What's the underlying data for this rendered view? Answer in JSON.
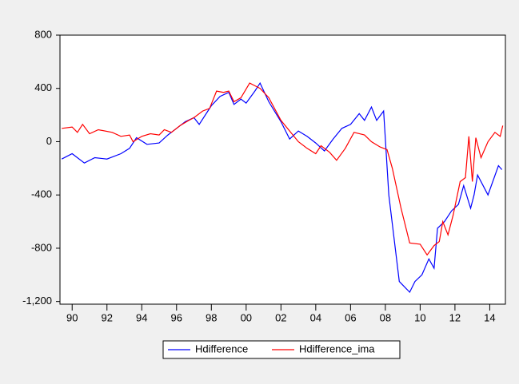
{
  "chart_data": {
    "type": "line",
    "xlim": [
      1989.3,
      2014.9
    ],
    "ylim": [
      -1220,
      800
    ],
    "xticks": [
      {
        "value": 1990,
        "label": "90"
      },
      {
        "value": 1992,
        "label": "92"
      },
      {
        "value": 1994,
        "label": "94"
      },
      {
        "value": 1996,
        "label": "96"
      },
      {
        "value": 1998,
        "label": "98"
      },
      {
        "value": 2000,
        "label": "00"
      },
      {
        "value": 2002,
        "label": "02"
      },
      {
        "value": 2004,
        "label": "04"
      },
      {
        "value": 2006,
        "label": "06"
      },
      {
        "value": 2008,
        "label": "08"
      },
      {
        "value": 2010,
        "label": "10"
      },
      {
        "value": 2012,
        "label": "12"
      },
      {
        "value": 2014,
        "label": "14"
      }
    ],
    "yticks": [
      800,
      400,
      0,
      -400,
      -800,
      {
        "value": -1200,
        "label": "-1,200"
      }
    ],
    "series": [
      {
        "name": "Hdifference",
        "color": "#0000ff",
        "x": [
          1989.4,
          1990.0,
          1990.7,
          1991.3,
          1992.0,
          1992.8,
          1993.3,
          1993.7,
          1994.3,
          1995.0,
          1995.5,
          1996.0,
          1996.5,
          1997.0,
          1997.3,
          1998.0,
          1998.5,
          1999.0,
          1999.3,
          1999.7,
          2000.0,
          2000.5,
          2000.8,
          2001.3,
          2002.0,
          2002.5,
          2003.0,
          2003.5,
          2004.0,
          2004.5,
          2005.0,
          2005.5,
          2006.0,
          2006.5,
          2006.8,
          2007.2,
          2007.5,
          2007.9,
          2008.2,
          2008.8,
          2009.4,
          2009.7,
          2010.1,
          2010.5,
          2010.8,
          2011.0,
          2011.4,
          2011.8,
          2012.2,
          2012.5,
          2012.9,
          2013.1,
          2013.3,
          2013.9,
          2014.5,
          2014.7
        ],
        "values": [
          -130,
          -90,
          -160,
          -120,
          -130,
          -90,
          -50,
          30,
          -20,
          -10,
          50,
          100,
          150,
          180,
          130,
          270,
          340,
          370,
          280,
          320,
          290,
          380,
          440,
          300,
          150,
          20,
          80,
          40,
          -10,
          -70,
          20,
          100,
          130,
          210,
          160,
          260,
          160,
          230,
          -400,
          -1050,
          -1130,
          -1050,
          -1000,
          -880,
          -950,
          -650,
          -600,
          -520,
          -470,
          -330,
          -500,
          -400,
          -250,
          -400,
          -180,
          -210
        ]
      },
      {
        "name": "Hdifference_ima",
        "color": "#ff0000",
        "x": [
          1989.4,
          1990.0,
          1990.3,
          1990.6,
          1991.0,
          1991.5,
          1992.3,
          1992.8,
          1993.3,
          1993.5,
          1994.0,
          1994.5,
          1995.0,
          1995.3,
          1995.7,
          1996.2,
          1996.7,
          1997.0,
          1997.5,
          1997.9,
          1998.3,
          1998.7,
          1999.0,
          1999.3,
          1999.7,
          2000.2,
          2000.5,
          2000.8,
          2001.3,
          2002.0,
          2002.5,
          2003.0,
          2003.5,
          2004.0,
          2004.3,
          2004.8,
          2005.2,
          2005.7,
          2006.2,
          2006.8,
          2007.2,
          2007.7,
          2008.1,
          2008.4,
          2008.9,
          2009.4,
          2010.0,
          2010.4,
          2010.8,
          2011.1,
          2011.3,
          2011.6,
          2011.9,
          2012.3,
          2012.6,
          2012.8,
          2013.0,
          2013.2,
          2013.5,
          2013.9,
          2014.3,
          2014.6,
          2014.75
        ],
        "values": [
          100,
          110,
          70,
          130,
          60,
          90,
          70,
          40,
          50,
          0,
          40,
          60,
          50,
          90,
          70,
          120,
          160,
          180,
          230,
          250,
          380,
          370,
          380,
          300,
          330,
          440,
          420,
          400,
          330,
          160,
          80,
          0,
          -50,
          -90,
          -30,
          -80,
          -140,
          -50,
          70,
          50,
          0,
          -40,
          -60,
          -200,
          -500,
          -760,
          -770,
          -850,
          -780,
          -750,
          -600,
          -700,
          -550,
          -300,
          -270,
          40,
          -300,
          30,
          -120,
          0,
          70,
          40,
          120
        ]
      }
    ]
  }
}
